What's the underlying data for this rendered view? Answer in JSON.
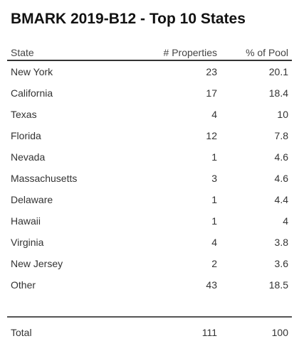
{
  "title": "BMARK 2019-B12 - Top 10 States",
  "columns": {
    "state": "State",
    "properties": "# Properties",
    "pool": "% of Pool"
  },
  "rows": [
    {
      "state": "New York",
      "properties": "23",
      "pool": "20.1"
    },
    {
      "state": "California",
      "properties": "17",
      "pool": "18.4"
    },
    {
      "state": "Texas",
      "properties": "4",
      "pool": "10"
    },
    {
      "state": "Florida",
      "properties": "12",
      "pool": "7.8"
    },
    {
      "state": "Nevada",
      "properties": "1",
      "pool": "4.6"
    },
    {
      "state": "Massachusetts",
      "properties": "3",
      "pool": "4.6"
    },
    {
      "state": "Delaware",
      "properties": "1",
      "pool": "4.4"
    },
    {
      "state": "Hawaii",
      "properties": "1",
      "pool": "4"
    },
    {
      "state": "Virginia",
      "properties": "4",
      "pool": "3.8"
    },
    {
      "state": "New Jersey",
      "properties": "2",
      "pool": "3.6"
    },
    {
      "state": "Other",
      "properties": "43",
      "pool": "18.5"
    }
  ],
  "total": {
    "label": "Total",
    "properties": "111",
    "pool": "100"
  }
}
